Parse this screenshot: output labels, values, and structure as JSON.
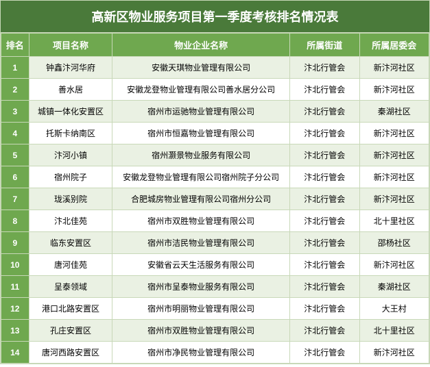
{
  "title": "高新区物业服务项目第一季度考核排名情况表",
  "colors": {
    "header_bg": "#4a7a3a",
    "th_bg": "#6fa84f",
    "rank_bg": "#6fa84f",
    "odd_row_bg": "#eaf1e3",
    "even_row_bg": "#ffffff",
    "border": "#c8d8b8",
    "header_text": "#ffffff"
  },
  "columns": [
    "排名",
    "项目名称",
    "物业企业名称",
    "所属街道",
    "所属居委会"
  ],
  "rows": [
    [
      "1",
      "钟鑫汴河华府",
      "安徽天琪物业管理有限公司",
      "汴北行管会",
      "新汴河社区"
    ],
    [
      "2",
      "善水居",
      "安徽龙登物业管理有限公司善水居分公司",
      "汴北行管会",
      "新汴河社区"
    ],
    [
      "3",
      "城镇一体化安置区",
      "宿州市运驰物业管理有限公司",
      "汴北行管会",
      "秦湖社区"
    ],
    [
      "4",
      "托斯卡纳南区",
      "宿州市恒嘉物业管理有限公司",
      "汴北行管会",
      "新汴河社区"
    ],
    [
      "5",
      "汴河小镇",
      "宿州灏景物业服务有限公司",
      "汴北行管会",
      "新汴河社区"
    ],
    [
      "6",
      "宿州院子",
      "安徽龙登物业管理有限公司宿州院子分公司",
      "汴北行管会",
      "新汴河社区"
    ],
    [
      "7",
      "珑溪别院",
      "合肥城房物业管理有限公司宿州分公司",
      "汴北行管会",
      "新汴河社区"
    ],
    [
      "8",
      "汴北佳苑",
      "宿州市双胜物业管理有限公司",
      "汴北行管会",
      "北十里社区"
    ],
    [
      "9",
      "临东安置区",
      "宿州市洁民物业管理有限公司",
      "汴北行管会",
      "邵杨社区"
    ],
    [
      "10",
      "唐河佳苑",
      "安徽省云天生活服务有限公司",
      "汴北行管会",
      "新汴河社区"
    ],
    [
      "11",
      "呈泰领域",
      "宿州市呈泰物业服务有限公司",
      "汴北行管会",
      "秦湖社区"
    ],
    [
      "12",
      "港口北路安置区",
      "宿州市明丽物业管理有限公司",
      "汴北行管会",
      "大王村"
    ],
    [
      "13",
      "孔庄安置区",
      "宿州市双胜物业管理有限公司",
      "汴北行管会",
      "北十里社区"
    ],
    [
      "14",
      "唐河西路安置区",
      "宿州市净民物业管理有限公司",
      "汴北行管会",
      "新汴河社区"
    ]
  ]
}
